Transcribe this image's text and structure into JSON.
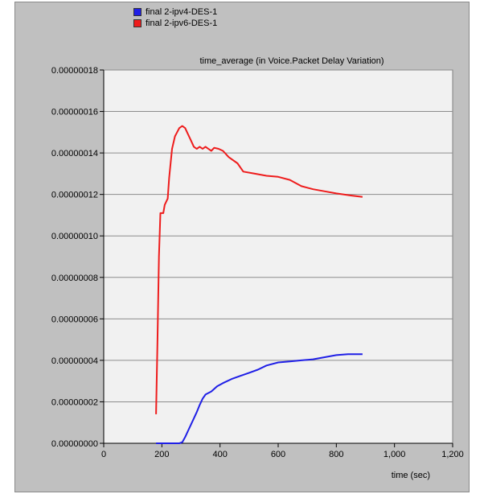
{
  "chart_data": {
    "type": "line",
    "title": "time_average (in Voice.Packet Delay Variation)",
    "xlabel": "time (sec)",
    "ylabel": "",
    "xlim": [
      0,
      1200
    ],
    "ylim": [
      0,
      1.8e-07
    ],
    "xticks": [
      {
        "value": 0,
        "label": "0"
      },
      {
        "value": 200,
        "label": "200"
      },
      {
        "value": 400,
        "label": "400"
      },
      {
        "value": 600,
        "label": "600"
      },
      {
        "value": 800,
        "label": "800"
      },
      {
        "value": 1000,
        "label": "1,000"
      },
      {
        "value": 1200,
        "label": "1,200"
      }
    ],
    "yticks": [
      {
        "value": 0,
        "label": "0.00000000"
      },
      {
        "value": 2e-08,
        "label": "0.00000002"
      },
      {
        "value": 4e-08,
        "label": "0.00000004"
      },
      {
        "value": 6e-08,
        "label": "0.00000006"
      },
      {
        "value": 8e-08,
        "label": "0.00000008"
      },
      {
        "value": 1e-07,
        "label": "0.00000010"
      },
      {
        "value": 1.2e-07,
        "label": "0.00000012"
      },
      {
        "value": 1.4e-07,
        "label": "0.00000014"
      },
      {
        "value": 1.6e-07,
        "label": "0.00000016"
      },
      {
        "value": 1.8e-07,
        "label": "0.00000018"
      }
    ],
    "grid": true,
    "legend_position": "top-left",
    "series": [
      {
        "name": "final 2-ipv4-DES-1",
        "color": "#1f1fe6",
        "points": [
          [
            180,
            0
          ],
          [
            200,
            0
          ],
          [
            220,
            0
          ],
          [
            240,
            0
          ],
          [
            260,
            0
          ],
          [
            270,
            5e-10
          ],
          [
            280,
            3e-09
          ],
          [
            290,
            6e-09
          ],
          [
            300,
            9e-09
          ],
          [
            310,
            1.2e-08
          ],
          [
            320,
            1.5e-08
          ],
          [
            330,
            1.85e-08
          ],
          [
            340,
            2.15e-08
          ],
          [
            350,
            2.35e-08
          ],
          [
            370,
            2.5e-08
          ],
          [
            390,
            2.75e-08
          ],
          [
            410,
            2.9e-08
          ],
          [
            440,
            3.1e-08
          ],
          [
            470,
            3.25e-08
          ],
          [
            500,
            3.4e-08
          ],
          [
            530,
            3.55e-08
          ],
          [
            560,
            3.75e-08
          ],
          [
            600,
            3.9e-08
          ],
          [
            640,
            3.95e-08
          ],
          [
            680,
            4e-08
          ],
          [
            720,
            4.05e-08
          ],
          [
            760,
            4.15e-08
          ],
          [
            800,
            4.25e-08
          ],
          [
            840,
            4.3e-08
          ],
          [
            890,
            4.3e-08
          ]
        ]
      },
      {
        "name": "final 2-ipv6-DES-1",
        "color": "#ee1c1c",
        "points": [
          [
            180,
            1.4e-08
          ],
          [
            185,
            5e-08
          ],
          [
            190,
            9e-08
          ],
          [
            195,
            1.11e-07
          ],
          [
            205,
            1.11e-07
          ],
          [
            210,
            1.15e-07
          ],
          [
            220,
            1.18e-07
          ],
          [
            225,
            1.28e-07
          ],
          [
            235,
            1.42e-07
          ],
          [
            245,
            1.48e-07
          ],
          [
            260,
            1.52e-07
          ],
          [
            270,
            1.53e-07
          ],
          [
            280,
            1.52e-07
          ],
          [
            290,
            1.49e-07
          ],
          [
            300,
            1.46e-07
          ],
          [
            310,
            1.43e-07
          ],
          [
            320,
            1.42e-07
          ],
          [
            330,
            1.43e-07
          ],
          [
            340,
            1.42e-07
          ],
          [
            350,
            1.43e-07
          ],
          [
            360,
            1.42e-07
          ],
          [
            370,
            1.41e-07
          ],
          [
            380,
            1.425e-07
          ],
          [
            395,
            1.42e-07
          ],
          [
            410,
            1.41e-07
          ],
          [
            430,
            1.38e-07
          ],
          [
            460,
            1.35e-07
          ],
          [
            480,
            1.31e-07
          ],
          [
            520,
            1.3e-07
          ],
          [
            560,
            1.29e-07
          ],
          [
            600,
            1.285e-07
          ],
          [
            640,
            1.27e-07
          ],
          [
            680,
            1.24e-07
          ],
          [
            720,
            1.225e-07
          ],
          [
            760,
            1.215e-07
          ],
          [
            800,
            1.205e-07
          ],
          [
            850,
            1.195e-07
          ],
          [
            890,
            1.188e-07
          ]
        ]
      }
    ]
  }
}
